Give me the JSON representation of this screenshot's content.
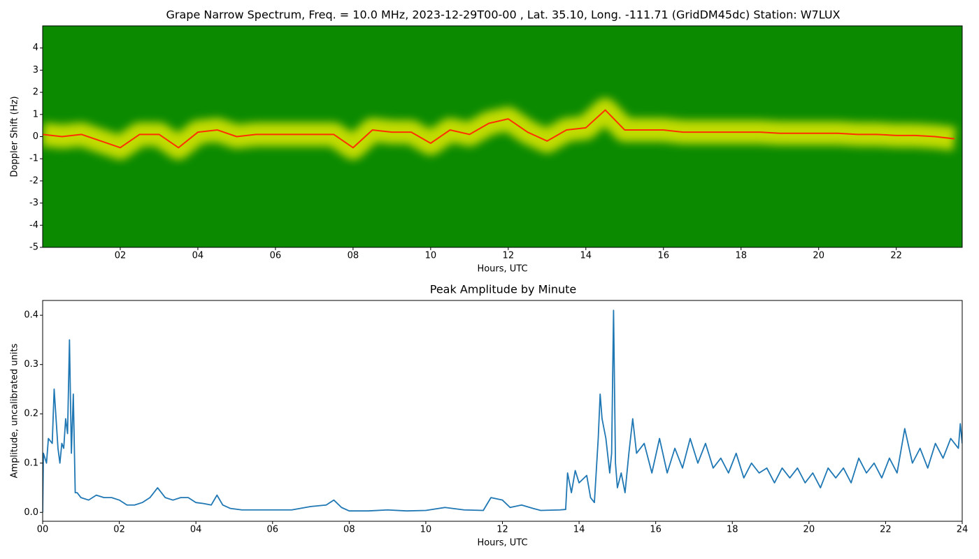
{
  "chart_data": [
    {
      "type": "spectrogram",
      "title": "Grape Narrow Spectrum, Freq. = 10.0 MHz, 2023-12-29T00-00 , Lat.  35.10, Long. -111.71 (GridDM45dc) Station: W7LUX",
      "xlabel": "Hours, UTC",
      "ylabel": "Doppler Shift (Hz)",
      "xlim": [
        0,
        23.7
      ],
      "ylim": [
        -5,
        5
      ],
      "xticks": [
        {
          "value": 2,
          "label": "02"
        },
        {
          "value": 4,
          "label": "04"
        },
        {
          "value": 6,
          "label": "06"
        },
        {
          "value": 8,
          "label": "08"
        },
        {
          "value": 10,
          "label": "10"
        },
        {
          "value": 12,
          "label": "12"
        },
        {
          "value": 14,
          "label": "14"
        },
        {
          "value": 16,
          "label": "16"
        },
        {
          "value": 18,
          "label": "18"
        },
        {
          "value": 20,
          "label": "20"
        },
        {
          "value": 22,
          "label": "22"
        }
      ],
      "yticks": [
        -5,
        -4,
        -3,
        -2,
        -1,
        0,
        1,
        2,
        3,
        4
      ],
      "background": "#0b8a00",
      "band_color": "#f0f000",
      "color": "#ff3000",
      "x": [
        0,
        0.5,
        1,
        1.5,
        2,
        2.5,
        3,
        3.5,
        4,
        4.5,
        5,
        5.5,
        6,
        6.5,
        7,
        7.5,
        8,
        8.5,
        9,
        9.5,
        10,
        10.5,
        11,
        11.5,
        12,
        12.5,
        13,
        13.5,
        14,
        14.5,
        15,
        15.5,
        16,
        16.5,
        17,
        17.5,
        18,
        18.5,
        19,
        19.5,
        20,
        20.5,
        21,
        21.5,
        22,
        22.5,
        23,
        23.5
      ],
      "values": [
        0.1,
        0,
        0.1,
        -0.2,
        -0.5,
        0.1,
        0.1,
        -0.5,
        0.2,
        0.3,
        0,
        0.1,
        0.1,
        0.1,
        0.1,
        0.1,
        -0.5,
        0.3,
        0.2,
        0.2,
        -0.3,
        0.3,
        0.1,
        0.6,
        0.8,
        0.2,
        -0.2,
        0.3,
        0.4,
        1.2,
        0.3,
        0.3,
        0.3,
        0.2,
        0.2,
        0.2,
        0.2,
        0.2,
        0.15,
        0.15,
        0.15,
        0.15,
        0.1,
        0.1,
        0.05,
        0.05,
        0,
        -0.1
      ]
    },
    {
      "type": "line",
      "title": "Peak Amplitude by Minute",
      "xlabel": "Hours, UTC",
      "ylabel": "Amplitude, uncalibrated units",
      "xlim": [
        0,
        24
      ],
      "ylim": [
        -0.018,
        0.43
      ],
      "xticks": [
        {
          "value": 0,
          "label": "00"
        },
        {
          "value": 2,
          "label": "02"
        },
        {
          "value": 4,
          "label": "04"
        },
        {
          "value": 6,
          "label": "06"
        },
        {
          "value": 8,
          "label": "08"
        },
        {
          "value": 10,
          "label": "10"
        },
        {
          "value": 12,
          "label": "12"
        },
        {
          "value": 14,
          "label": "14"
        },
        {
          "value": 16,
          "label": "16"
        },
        {
          "value": 18,
          "label": "18"
        },
        {
          "value": 20,
          "label": "20"
        },
        {
          "value": 22,
          "label": "22"
        },
        24
      ],
      "yticks": [
        {
          "value": 0,
          "label": "0.0"
        },
        0.1,
        0.2,
        0.3,
        0.4
      ],
      "color": "#1f77b4",
      "x": [
        0,
        0.02,
        0.1,
        0.15,
        0.25,
        0.3,
        0.4,
        0.45,
        0.5,
        0.55,
        0.6,
        0.65,
        0.7,
        0.75,
        0.8,
        0.85,
        0.9,
        1.0,
        1.2,
        1.4,
        1.6,
        1.8,
        2.0,
        2.2,
        2.4,
        2.6,
        2.8,
        3.0,
        3.2,
        3.4,
        3.6,
        3.8,
        4.0,
        4.2,
        4.4,
        4.55,
        4.7,
        4.9,
        5.2,
        5.6,
        6.0,
        6.5,
        7.0,
        7.4,
        7.6,
        7.8,
        8.0,
        8.5,
        9.0,
        9.5,
        10.0,
        10.5,
        11.0,
        11.5,
        11.7,
        12.0,
        12.2,
        12.5,
        12.8,
        13.0,
        13.5,
        13.65,
        13.7,
        13.8,
        13.9,
        14.0,
        14.2,
        14.3,
        14.4,
        14.5,
        14.55,
        14.6,
        14.7,
        14.8,
        14.85,
        14.9,
        14.95,
        15.0,
        15.1,
        15.2,
        15.3,
        15.4,
        15.5,
        15.7,
        15.9,
        16.1,
        16.3,
        16.5,
        16.7,
        16.9,
        17.1,
        17.3,
        17.5,
        17.7,
        17.9,
        18.1,
        18.3,
        18.5,
        18.7,
        18.9,
        19.1,
        19.3,
        19.5,
        19.7,
        19.9,
        20.1,
        20.3,
        20.5,
        20.7,
        20.9,
        21.1,
        21.3,
        21.5,
        21.7,
        21.9,
        22.1,
        22.3,
        22.5,
        22.7,
        22.9,
        23.1,
        23.3,
        23.5,
        23.7,
        23.9,
        23.95,
        24.0
      ],
      "values": [
        0.0,
        0.12,
        0.1,
        0.15,
        0.14,
        0.25,
        0.13,
        0.1,
        0.14,
        0.13,
        0.19,
        0.16,
        0.35,
        0.12,
        0.24,
        0.04,
        0.04,
        0.03,
        0.025,
        0.035,
        0.03,
        0.03,
        0.025,
        0.015,
        0.015,
        0.02,
        0.03,
        0.05,
        0.03,
        0.025,
        0.03,
        0.03,
        0.02,
        0.018,
        0.015,
        0.035,
        0.015,
        0.008,
        0.005,
        0.005,
        0.005,
        0.005,
        0.012,
        0.015,
        0.025,
        0.01,
        0.003,
        0.003,
        0.005,
        0.003,
        0.004,
        0.01,
        0.005,
        0.004,
        0.03,
        0.025,
        0.01,
        0.015,
        0.008,
        0.004,
        0.005,
        0.006,
        0.08,
        0.04,
        0.085,
        0.06,
        0.075,
        0.03,
        0.02,
        0.15,
        0.24,
        0.19,
        0.15,
        0.08,
        0.12,
        0.41,
        0.1,
        0.05,
        0.08,
        0.04,
        0.12,
        0.19,
        0.12,
        0.14,
        0.08,
        0.15,
        0.08,
        0.13,
        0.09,
        0.15,
        0.1,
        0.14,
        0.09,
        0.11,
        0.08,
        0.12,
        0.07,
        0.1,
        0.08,
        0.09,
        0.06,
        0.09,
        0.07,
        0.09,
        0.06,
        0.08,
        0.05,
        0.09,
        0.07,
        0.09,
        0.06,
        0.11,
        0.08,
        0.1,
        0.07,
        0.11,
        0.08,
        0.17,
        0.1,
        0.13,
        0.09,
        0.14,
        0.11,
        0.15,
        0.13,
        0.18,
        0.14
      ]
    }
  ]
}
